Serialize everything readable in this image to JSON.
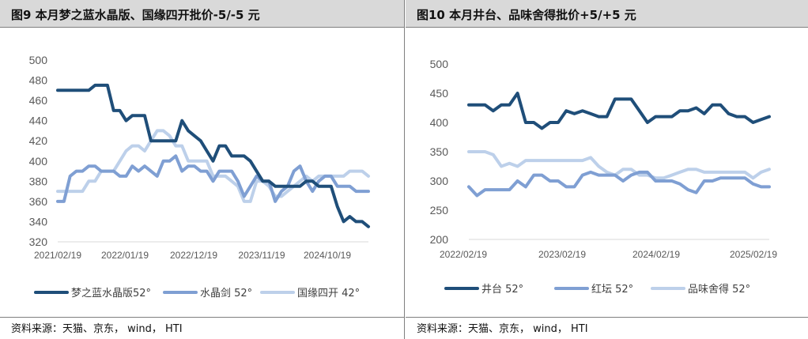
{
  "source": "资料来源：天猫、京东， wind， HTI",
  "colors": {
    "dark": "#1f4e79",
    "mid": "#7f9fd3",
    "light": "#bdd0ea",
    "title_bg": "#d9d9d9"
  },
  "chart_data": [
    {
      "type": "line",
      "title": "图9  本月梦之蓝水晶版、国缘四开批价-5/-5 元",
      "ylim": [
        320,
        500
      ],
      "yticks": [
        320,
        340,
        360,
        380,
        400,
        420,
        440,
        460,
        480,
        500
      ],
      "xtick_labels": [
        "2021/02/19",
        "2022/01/19",
        "2022/12/19",
        "2023/11/19",
        "2024/10/19"
      ],
      "legend_position": "bottom",
      "series": [
        {
          "name": "梦之蓝水晶版52°",
          "color": "#1f4e79",
          "values": [
            470,
            470,
            470,
            470,
            470,
            470,
            475,
            475,
            475,
            450,
            450,
            440,
            445,
            445,
            445,
            420,
            420,
            420,
            420,
            420,
            440,
            430,
            425,
            420,
            410,
            400,
            415,
            415,
            405,
            405,
            405,
            400,
            390,
            380,
            380,
            375,
            375,
            375,
            375,
            375,
            380,
            380,
            375,
            375,
            375,
            355,
            340,
            345,
            340,
            340,
            335
          ]
        },
        {
          "name": "水晶剑 52°",
          "color": "#7f9fd3",
          "values": [
            360,
            360,
            385,
            390,
            390,
            395,
            395,
            390,
            390,
            390,
            385,
            385,
            395,
            390,
            395,
            390,
            385,
            400,
            400,
            405,
            390,
            395,
            395,
            390,
            390,
            380,
            390,
            390,
            390,
            380,
            365,
            375,
            385,
            380,
            380,
            360,
            370,
            375,
            390,
            395,
            380,
            370,
            380,
            385,
            385,
            375,
            375,
            375,
            370,
            370,
            370
          ]
        },
        {
          "name": "国缘四开 42°",
          "color": "#bdd0ea",
          "values": [
            370,
            370,
            370,
            370,
            370,
            380,
            380,
            390,
            390,
            390,
            400,
            410,
            415,
            415,
            410,
            420,
            430,
            430,
            425,
            415,
            415,
            400,
            400,
            400,
            400,
            385,
            385,
            385,
            380,
            375,
            360,
            360,
            380,
            380,
            375,
            365,
            365,
            370,
            375,
            380,
            385,
            380,
            385,
            385,
            385,
            385,
            385,
            390,
            390,
            390,
            385
          ]
        }
      ]
    },
    {
      "type": "line",
      "title": "图10 本月井台、品味舍得批价+5/+5 元",
      "ylim": [
        200,
        500
      ],
      "yticks": [
        200,
        250,
        300,
        350,
        400,
        450,
        500
      ],
      "xtick_labels": [
        "2022/02/19",
        "2023/02/19",
        "2024/02/19",
        "2025/02/19"
      ],
      "legend_position": "bottom",
      "series": [
        {
          "name": "井台 52°",
          "color": "#1f4e79",
          "values": [
            430,
            430,
            430,
            420,
            430,
            430,
            450,
            400,
            400,
            390,
            400,
            400,
            420,
            415,
            420,
            415,
            410,
            410,
            440,
            440,
            440,
            420,
            400,
            410,
            410,
            410,
            420,
            420,
            425,
            415,
            430,
            430,
            415,
            410,
            410,
            400,
            405,
            410
          ]
        },
        {
          "name": "红坛 52°",
          "color": "#7f9fd3",
          "values": [
            290,
            275,
            285,
            285,
            285,
            285,
            300,
            290,
            310,
            310,
            300,
            300,
            290,
            290,
            310,
            315,
            310,
            310,
            310,
            300,
            310,
            315,
            315,
            300,
            300,
            300,
            295,
            285,
            280,
            300,
            300,
            305,
            305,
            305,
            305,
            295,
            290,
            290
          ]
        },
        {
          "name": "品味舍得 52°",
          "color": "#bdd0ea",
          "values": [
            350,
            350,
            350,
            345,
            325,
            330,
            325,
            335,
            335,
            335,
            335,
            335,
            335,
            335,
            335,
            340,
            325,
            315,
            310,
            320,
            320,
            310,
            310,
            305,
            305,
            310,
            315,
            320,
            320,
            315,
            315,
            315,
            315,
            315,
            315,
            305,
            315,
            320
          ]
        }
      ]
    }
  ]
}
